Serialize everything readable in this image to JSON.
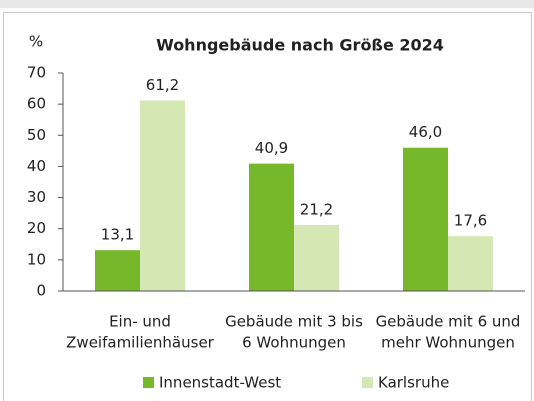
{
  "chart_data": {
    "type": "bar",
    "title": "Wohngebäude nach Größe 2024",
    "y_label": "%",
    "categories": [
      [
        "Ein- und",
        "Zweifamilienhäuser"
      ],
      [
        "Gebäude mit 3 bis",
        "6 Wohnungen"
      ],
      [
        "Gebäude mit 6 und",
        "mehr Wohnungen"
      ]
    ],
    "series": [
      {
        "name": "Innenstadt-West",
        "color": "#76b82a",
        "values": [
          13.1,
          40.9,
          46.0
        ],
        "value_labels": [
          "13,1",
          "40,9",
          "46,0"
        ]
      },
      {
        "name": "Karlsruhe",
        "color": "#d5e8b3",
        "values": [
          61.2,
          21.2,
          17.6
        ],
        "value_labels": [
          "61,2",
          "21,2",
          "17,6"
        ]
      }
    ],
    "ylim": [
      0,
      70
    ],
    "yticks": [
      0,
      10,
      20,
      30,
      40,
      50,
      60,
      70
    ],
    "grid": false
  }
}
